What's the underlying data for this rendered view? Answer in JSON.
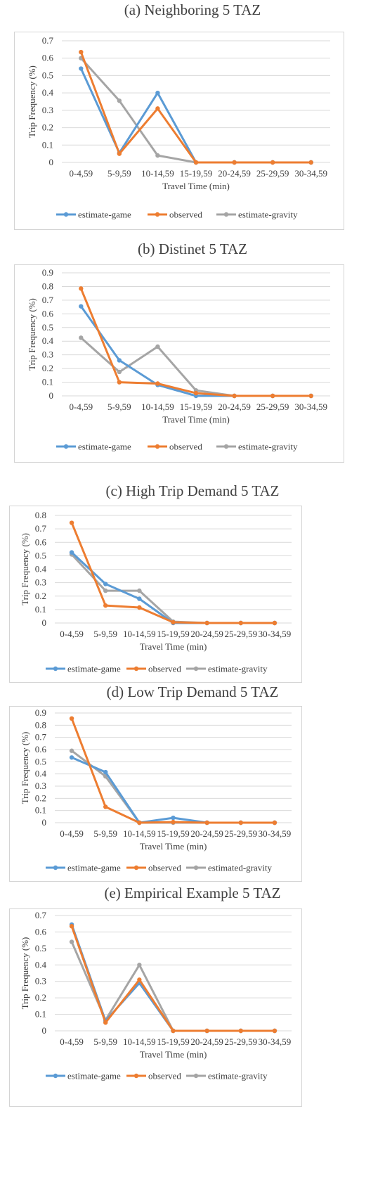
{
  "colors": {
    "estimate-game": "#5b9bd5",
    "observed": "#ed7d31",
    "estimate-gravity": "#a5a5a5",
    "grid": "#d9d9d9"
  },
  "chart_data": [
    {
      "type": "line",
      "title": "(a) Neighboring 5 TAZ",
      "xlabel": "Travel Time (min)",
      "ylabel": "Trip Frequency (%)",
      "ylim": [
        0,
        0.7
      ],
      "yticks": [
        "0",
        "0.1",
        "0.2",
        "0.3",
        "0.4",
        "0.5",
        "0.6",
        "0.7"
      ],
      "grid": true,
      "legend_position": "bottom",
      "categories": [
        "0-4,59",
        "5-9,59",
        "10-14,59",
        "15-19,59",
        "20-24,59",
        "25-29,59",
        "30-34,59"
      ],
      "series": [
        {
          "name": "estimate-game",
          "values": [
            0.54,
            0.055,
            0.4,
            0,
            0,
            0,
            0
          ]
        },
        {
          "name": "observed",
          "values": [
            0.635,
            0.05,
            0.31,
            0,
            0,
            0,
            0
          ]
        },
        {
          "name": "estimate-gravity",
          "values": [
            0.6,
            0.355,
            0.04,
            0,
            0,
            0,
            0
          ]
        }
      ]
    },
    {
      "type": "line",
      "title": "(b) Distinet 5 TAZ",
      "xlabel": "Travel Time (min)",
      "ylabel": "Trip Frequency (%)",
      "ylim": [
        0,
        0.9
      ],
      "yticks": [
        "0",
        "0.1",
        "0.2",
        "0.3",
        "0.4",
        "0.5",
        "0.6",
        "0.7",
        "0.8",
        "0.9"
      ],
      "grid": true,
      "legend_position": "bottom",
      "categories": [
        "0-4,59",
        "5-9,59",
        "10-14,59",
        "15-19,59",
        "20-24,59",
        "25-29,59",
        "30-34,59"
      ],
      "series": [
        {
          "name": "estimate-game",
          "values": [
            0.655,
            0.26,
            0.08,
            0,
            0,
            0,
            0
          ]
        },
        {
          "name": "observed",
          "values": [
            0.785,
            0.1,
            0.09,
            0.02,
            0,
            0,
            0
          ]
        },
        {
          "name": "estimate-gravity",
          "values": [
            0.425,
            0.175,
            0.36,
            0.04,
            0,
            0,
            0
          ]
        }
      ]
    },
    {
      "type": "line",
      "title": "(c) High Trip Demand 5 TAZ",
      "xlabel": "Travel Time (min)",
      "ylabel": "Trip Frequency (%)",
      "ylim": [
        0,
        0.8
      ],
      "yticks": [
        "0",
        "0.1",
        "0.2",
        "0.3",
        "0.4",
        "0.5",
        "0.6",
        "0.7",
        "0.8"
      ],
      "grid": true,
      "legend_position": "bottom",
      "categories": [
        "0-4,59",
        "5-9,59",
        "10-14,59",
        "15-19,59",
        "20-24,59",
        "25-29,59",
        "30-34,59"
      ],
      "series": [
        {
          "name": "estimate-game",
          "values": [
            0.525,
            0.29,
            0.18,
            0,
            0,
            0,
            0
          ]
        },
        {
          "name": "observed",
          "values": [
            0.745,
            0.13,
            0.115,
            0.005,
            0,
            0,
            0
          ]
        },
        {
          "name": "estimate-gravity",
          "values": [
            0.51,
            0.24,
            0.24,
            0.01,
            0,
            0,
            0
          ]
        }
      ]
    },
    {
      "type": "line",
      "title": "(d) Low Trip Demand 5 TAZ",
      "xlabel": "Travel Time (min)",
      "ylabel": "Trip Frequency (%)",
      "ylim": [
        0,
        0.9
      ],
      "yticks": [
        "0",
        "0.1",
        "0.2",
        "0.3",
        "0.4",
        "0.5",
        "0.6",
        "0.7",
        "0.8",
        "0.9"
      ],
      "grid": true,
      "legend_position": "bottom",
      "categories": [
        "0-4,59",
        "5-9,59",
        "10-14,59",
        "15-19,59",
        "20-24,59",
        "25-29,59",
        "30-34,59"
      ],
      "series": [
        {
          "name": "estimate-game",
          "values": [
            0.535,
            0.415,
            0,
            0.04,
            0,
            0,
            0
          ]
        },
        {
          "name": "observed",
          "values": [
            0.855,
            0.13,
            0,
            0.005,
            0,
            0,
            0
          ]
        },
        {
          "name": "estimated-gravity",
          "values": [
            0.59,
            0.38,
            0,
            0,
            0,
            0,
            0
          ]
        }
      ]
    },
    {
      "type": "line",
      "title": "(e) Empirical Example 5 TAZ",
      "xlabel": "Travel Time (min)",
      "ylabel": "Trip Frequency (%)",
      "ylim": [
        0,
        0.7
      ],
      "yticks": [
        "0",
        "0.1",
        "0.2",
        "0.3",
        "0.4",
        "0.5",
        "0.6",
        "0.7"
      ],
      "grid": true,
      "legend_position": "bottom",
      "categories": [
        "0-4,59",
        "5-9,59",
        "10-14,59",
        "15-19,59",
        "20-24,59",
        "25-29,59",
        "30-34,59"
      ],
      "series": [
        {
          "name": "estimate-game",
          "values": [
            0.645,
            0.06,
            0.29,
            0,
            0,
            0,
            0
          ]
        },
        {
          "name": "observed",
          "values": [
            0.635,
            0.05,
            0.31,
            0,
            0,
            0,
            0
          ]
        },
        {
          "name": "estimate-gravity",
          "values": [
            0.54,
            0.065,
            0.4,
            0,
            0,
            0,
            0
          ]
        }
      ]
    }
  ]
}
